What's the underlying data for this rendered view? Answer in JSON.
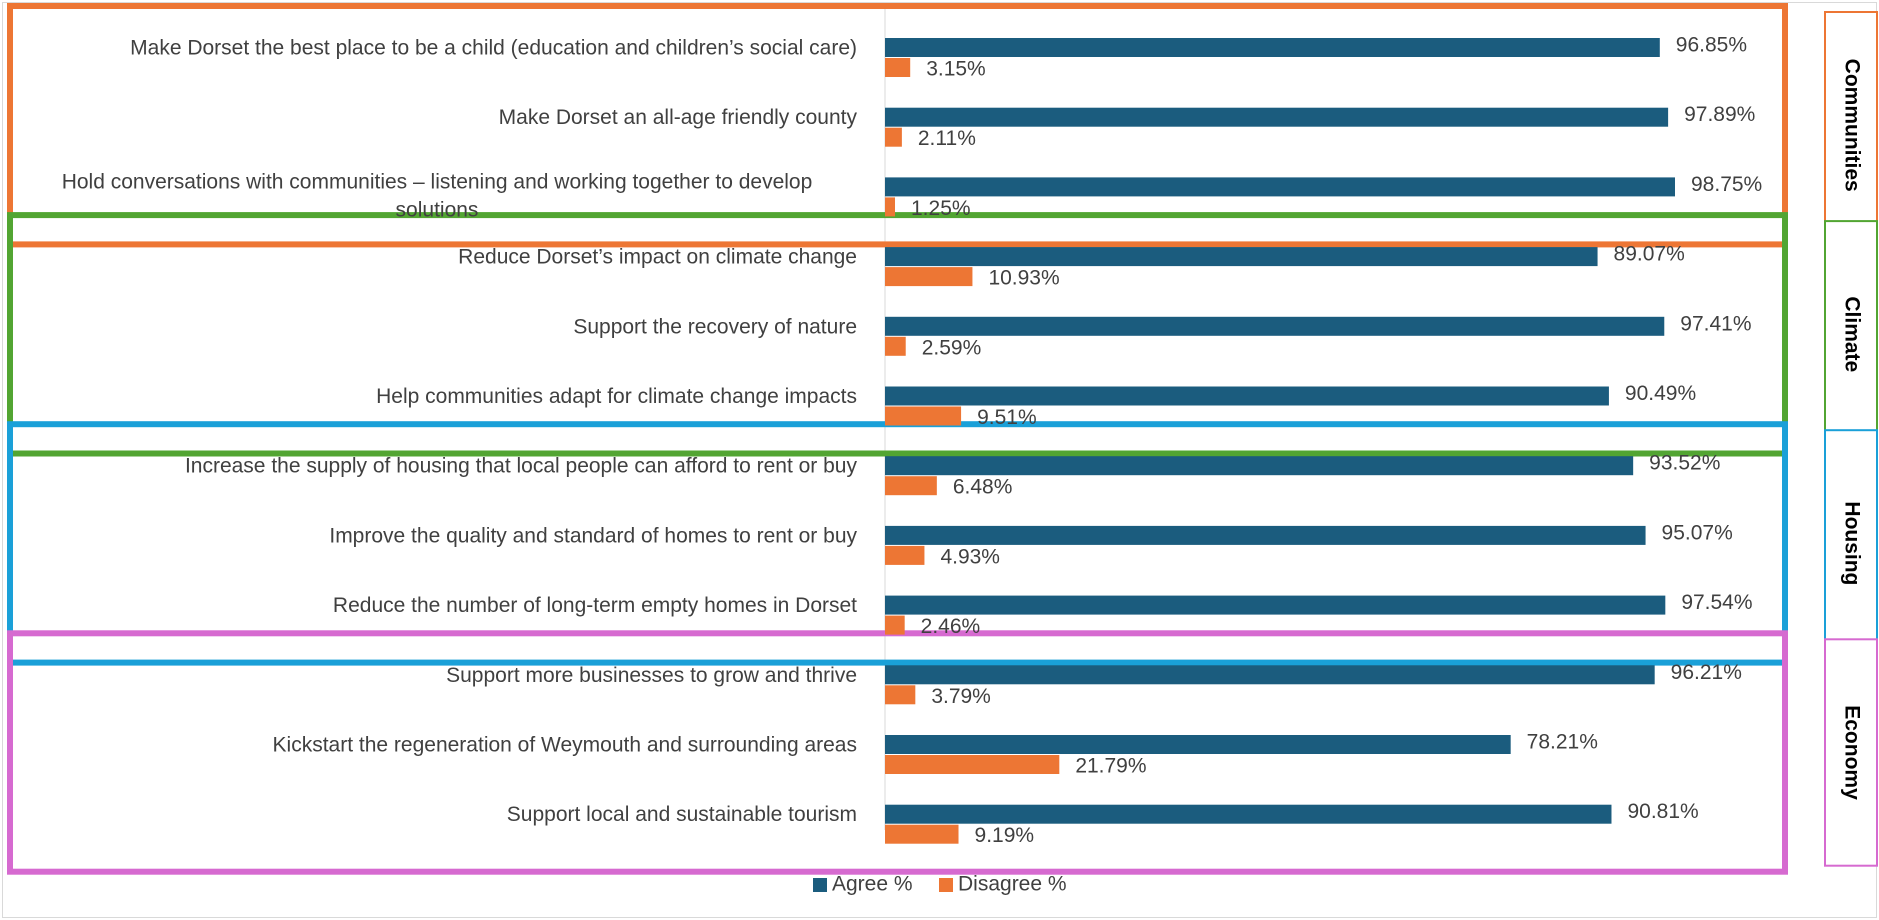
{
  "chart_data": {
    "type": "bar",
    "orientation": "horizontal",
    "categories": [
      "Make Dorset the best place to be a child (education and children’s social care)",
      "Make Dorset an all-age friendly county",
      "Hold conversations with communities – listening and working together to develop solutions",
      "Reduce Dorset’s impact on climate change",
      "Support the recovery of nature",
      "Help communities adapt for climate change impacts",
      "Increase the supply of housing that local people can afford to rent or buy",
      "Improve the quality and standard of homes to rent or buy",
      "Reduce the number of long-term empty homes in Dorset",
      "Support more businesses to grow and thrive",
      "Kickstart the regeneration of Weymouth and surrounding areas",
      "Support local and sustainable tourism"
    ],
    "series": [
      {
        "name": "Agree %",
        "color": "#1b5c7e",
        "values": [
          96.85,
          97.89,
          98.75,
          89.07,
          97.41,
          90.49,
          93.52,
          95.07,
          97.54,
          96.21,
          78.21,
          90.81
        ],
        "labels": [
          "96.85%",
          "97.89%",
          "98.75%",
          "89.07%",
          "97.41%",
          "90.49%",
          "93.52%",
          "95.07%",
          "97.54%",
          "96.21%",
          "78.21%",
          "90.81%"
        ]
      },
      {
        "name": "Disagree %",
        "color": "#ed7634",
        "values": [
          3.15,
          2.11,
          1.25,
          10.93,
          2.59,
          9.51,
          6.48,
          4.93,
          2.46,
          3.79,
          21.79,
          9.19
        ],
        "labels": [
          "3.15%",
          "2.11%",
          "1.25%",
          "10.93%",
          "2.59%",
          "9.51%",
          "6.48%",
          "4.93%",
          "2.46%",
          "3.79%",
          "21.79%",
          "9.19%"
        ]
      }
    ],
    "groups": [
      {
        "name": "Communities",
        "color": "#ed7634",
        "members": [
          0,
          1,
          2
        ]
      },
      {
        "name": "Climate",
        "color": "#52a532",
        "members": [
          3,
          4,
          5
        ]
      },
      {
        "name": "Housing",
        "color": "#1aa0d8",
        "members": [
          6,
          7,
          8
        ]
      },
      {
        "name": "Economy",
        "color": "#d66ad0",
        "members": [
          9,
          10,
          11
        ]
      }
    ],
    "xlim": [
      0,
      100
    ],
    "legend_position": "bottom",
    "grid": false
  }
}
